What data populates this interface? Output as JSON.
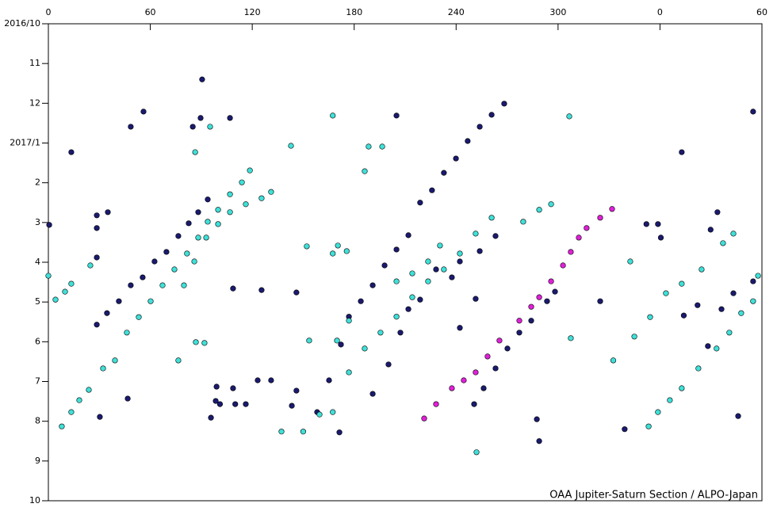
{
  "chart_data": {
    "type": "scatter",
    "credit": "OAA Jupiter-Saturn Section / ALPO-Japan",
    "xlim": [
      0,
      420
    ],
    "xticks": [
      0,
      60,
      120,
      180,
      240,
      300,
      {
        "value": 360,
        "label": "0"
      },
      {
        "value": 420,
        "label": "60"
      }
    ],
    "ylim": [
      0,
      12
    ],
    "y_direction": "down",
    "yticks": [
      {
        "value": 0,
        "label": "2016/10"
      },
      {
        "value": 1,
        "label": "11"
      },
      {
        "value": 2,
        "label": "12"
      },
      {
        "value": 3,
        "label": "2017/1"
      },
      {
        "value": 4,
        "label": "2"
      },
      {
        "value": 5,
        "label": "3"
      },
      {
        "value": 6,
        "label": "4"
      },
      {
        "value": 7,
        "label": "5"
      },
      {
        "value": 8,
        "label": "6"
      },
      {
        "value": 9,
        "label": "7"
      },
      {
        "value": 10,
        "label": "8"
      },
      {
        "value": 11,
        "label": "9"
      },
      {
        "value": 12,
        "label": "10"
      }
    ],
    "series": [
      {
        "color": "#1a1a6e",
        "x": [
          0.5,
          13.5,
          56,
          48.5,
          90.5,
          89.6,
          106.9,
          85,
          204.9,
          268.3,
          28.5,
          34.5,
          41.5,
          48.5,
          55.5,
          62.5,
          69.5,
          76.5,
          82.6,
          88.2,
          93.8,
          28.5,
          28.5,
          35,
          28.5,
          158.2,
          165.2,
          172.2,
          176.9,
          183.9,
          190.9,
          197.9,
          204.9,
          211.9,
          218.8,
          225.8,
          232.8,
          239.9,
          246.8,
          253.9,
          260.9,
          190.9,
          200.2,
          207.2,
          211.9,
          218.8,
          228.2,
          237.5,
          242.2,
          253.9,
          263.2,
          250.6,
          256.2,
          263.2,
          270.2,
          277.2,
          284.2,
          293.5,
          298.2,
          324.8,
          339.2,
          288.9,
          287.5,
          251.5,
          242.2,
          46.7,
          30.3,
          98.5,
          99,
          101,
          108.7,
          110,
          116.2,
          123.2,
          131.1,
          143.3,
          146,
          171.3,
          146,
          125.5,
          108.7,
          95.7,
          358.8,
          352,
          372.8,
          414.8,
          406,
          388.2,
          396.2,
          403.2,
          414.8,
          382.1,
          389.8,
          393.8,
          374,
          360.5
        ],
        "values": [
          5.06,
          3.23,
          2.21,
          2.59,
          1.4,
          2.37,
          2.37,
          2.59,
          2.31,
          2.01,
          7.57,
          7.28,
          6.98,
          6.58,
          6.38,
          5.98,
          5.74,
          5.34,
          5.02,
          4.74,
          4.42,
          5.88,
          5.14,
          4.74,
          4.82,
          9.77,
          8.97,
          8.07,
          7.37,
          6.98,
          6.58,
          6.08,
          5.68,
          5.32,
          4.5,
          4.19,
          3.75,
          3.39,
          2.95,
          2.59,
          2.29,
          9.31,
          8.57,
          7.77,
          7.18,
          6.94,
          6.18,
          6.38,
          5.98,
          5.72,
          5.34,
          9.57,
          9.17,
          8.67,
          8.17,
          7.77,
          7.47,
          6.98,
          6.74,
          6.98,
          10.2,
          10.5,
          9.95,
          6.92,
          7.65,
          9.43,
          9.89,
          9.49,
          9.13,
          9.57,
          9.17,
          9.57,
          9.57,
          8.97,
          8.97,
          9.61,
          9.23,
          10.28,
          6.76,
          6.7,
          6.66,
          9.91,
          5.04,
          5.04,
          3.23,
          2.21,
          9.87,
          8.11,
          7.18,
          6.78,
          6.48,
          7.08,
          5.18,
          4.74,
          7.34,
          5.38
        ]
      },
      {
        "color": "#3fe0d8",
        "x": [
          7.9,
          13.5,
          18.2,
          23.8,
          32.2,
          39.2,
          46.2,
          53.2,
          60.2,
          67.2,
          74.2,
          81.6,
          88.2,
          93.8,
          99.9,
          106.9,
          113.9,
          118.6,
          79.8,
          85.9,
          92.9,
          99.9,
          106.9,
          116.2,
          125.5,
          131.1,
          0,
          4.2,
          9.8,
          13.5,
          24.7,
          137.2,
          167.4,
          176.9,
          186.2,
          195.5,
          204.9,
          214.2,
          223.5,
          232.8,
          242.2,
          251.5,
          260.9,
          279.5,
          288.9,
          295.9,
          169.9,
          176.9,
          204.9,
          214.2,
          223.5,
          230.5,
          167.4,
          142.8,
          188.5,
          196.5,
          186.2,
          306.6,
          86.4,
          95.2,
          252,
          152.1,
          170.4,
          175.6,
          167.4,
          86.8,
          91.9,
          76.5,
          153.5,
          159.6,
          150,
          307.5,
          332.5,
          342.5,
          344.9,
          354.2,
          363.5,
          372.8,
          353.3,
          358.8,
          365.8,
          372.8,
          382.6,
          393.3,
          400.8,
          407.8,
          414.8,
          417.7,
          403.2,
          397.1,
          384.5
        ],
        "values": [
          10.13,
          9.77,
          9.47,
          9.21,
          8.67,
          8.47,
          7.77,
          7.38,
          6.98,
          6.58,
          6.18,
          5.78,
          5.38,
          4.98,
          4.68,
          4.29,
          3.99,
          3.69,
          6.58,
          5.98,
          5.38,
          5.04,
          4.74,
          4.54,
          4.39,
          4.23,
          6.34,
          6.94,
          6.74,
          6.54,
          6.08,
          10.26,
          9.77,
          8.77,
          8.17,
          7.77,
          7.37,
          6.88,
          6.48,
          6.18,
          5.78,
          5.28,
          4.88,
          4.98,
          4.68,
          4.54,
          7.97,
          7.47,
          6.48,
          6.28,
          5.98,
          5.58,
          2.31,
          3.07,
          3.09,
          3.09,
          3.71,
          2.33,
          3.23,
          2.59,
          10.78,
          5.6,
          5.58,
          5.72,
          5.78,
          8.01,
          8.03,
          8.47,
          7.97,
          9.83,
          10.26,
          7.91,
          8.47,
          5.98,
          7.87,
          7.38,
          6.78,
          6.54,
          10.13,
          9.77,
          9.47,
          9.17,
          8.67,
          8.17,
          7.77,
          7.28,
          6.98,
          6.34,
          5.28,
          5.52,
          6.18
        ]
      },
      {
        "color": "#e020d8",
        "x": [
          221.2,
          228.2,
          237.5,
          244.5,
          251.5,
          258.5,
          265.5,
          277.2,
          284.2,
          288.9,
          295.9,
          302.9,
          307.5,
          312.2,
          316.8,
          324.8,
          331.8
        ],
        "values": [
          9.93,
          9.57,
          9.17,
          8.97,
          8.77,
          8.37,
          7.97,
          7.47,
          7.12,
          6.88,
          6.48,
          6.08,
          5.74,
          5.38,
          5.14,
          4.88,
          4.66
        ]
      }
    ]
  }
}
